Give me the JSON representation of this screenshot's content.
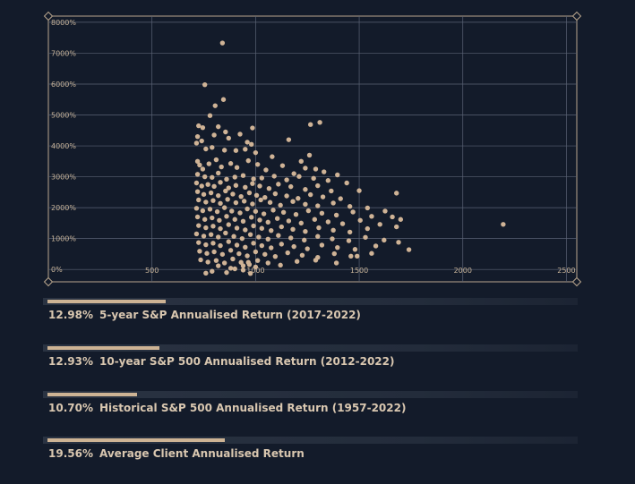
{
  "colors": {
    "background": "#131b2a",
    "grid": "#5b6375",
    "frame": "#b9a68d",
    "point": "#cfb396",
    "bar_fill": "#cdb394",
    "text": "#d9c7b0"
  },
  "chart_data": {
    "type": "scatter",
    "title": "",
    "xlabel": "",
    "ylabel": "",
    "xlim": [
      0,
      2550
    ],
    "ylim": [
      -400,
      8200
    ],
    "x_ticks": [
      500,
      1000,
      1500,
      2000,
      2500
    ],
    "y_ticks": [
      0,
      1000,
      2000,
      3000,
      4000,
      5000,
      6000,
      7000,
      8000
    ],
    "x_tick_labels": [
      "500",
      "1000",
      "1500",
      "2000",
      "2500"
    ],
    "y_tick_labels": [
      "0%",
      "1000%",
      "2000%",
      "3000%",
      "4000%",
      "5000%",
      "6000%",
      "7000%",
      "8000%"
    ],
    "grid": true,
    "series": [
      {
        "points": [
          [
            840,
            7330
          ],
          [
            755,
            5980
          ],
          [
            845,
            5500
          ],
          [
            805,
            5300
          ],
          [
            780,
            4980
          ],
          [
            1310,
            4760
          ],
          [
            1265,
            4690
          ],
          [
            725,
            4650
          ],
          [
            745,
            4590
          ],
          [
            820,
            4620
          ],
          [
            855,
            4450
          ],
          [
            985,
            4580
          ],
          [
            720,
            4300
          ],
          [
            740,
            4160
          ],
          [
            800,
            4350
          ],
          [
            870,
            4250
          ],
          [
            925,
            4380
          ],
          [
            960,
            4120
          ],
          [
            980,
            4050
          ],
          [
            1160,
            4200
          ],
          [
            715,
            4090
          ],
          [
            760,
            3900
          ],
          [
            790,
            3950
          ],
          [
            850,
            3860
          ],
          [
            905,
            3850
          ],
          [
            950,
            3890
          ],
          [
            1000,
            3780
          ],
          [
            1080,
            3650
          ],
          [
            1220,
            3500
          ],
          [
            1260,
            3700
          ],
          [
            720,
            3500
          ],
          [
            730,
            3380
          ],
          [
            745,
            3250
          ],
          [
            775,
            3420
          ],
          [
            810,
            3550
          ],
          [
            835,
            3320
          ],
          [
            880,
            3430
          ],
          [
            910,
            3300
          ],
          [
            965,
            3520
          ],
          [
            1010,
            3400
          ],
          [
            1050,
            3220
          ],
          [
            1130,
            3360
          ],
          [
            1185,
            3100
          ],
          [
            1240,
            3280
          ],
          [
            1290,
            3250
          ],
          [
            1330,
            3160
          ],
          [
            1395,
            3060
          ],
          [
            720,
            3080
          ],
          [
            755,
            3000
          ],
          [
            790,
            2980
          ],
          [
            820,
            3120
          ],
          [
            860,
            2920
          ],
          [
            900,
            2990
          ],
          [
            940,
            3040
          ],
          [
            990,
            2930
          ],
          [
            1030,
            2960
          ],
          [
            1090,
            3020
          ],
          [
            1150,
            2900
          ],
          [
            1210,
            3010
          ],
          [
            1280,
            2950
          ],
          [
            1350,
            2880
          ],
          [
            1440,
            2800
          ],
          [
            715,
            2800
          ],
          [
            740,
            2700
          ],
          [
            770,
            2750
          ],
          [
            800,
            2690
          ],
          [
            830,
            2820
          ],
          [
            870,
            2640
          ],
          [
            905,
            2720
          ],
          [
            950,
            2660
          ],
          [
            985,
            2780
          ],
          [
            1020,
            2700
          ],
          [
            1065,
            2620
          ],
          [
            1110,
            2760
          ],
          [
            1170,
            2680
          ],
          [
            1240,
            2590
          ],
          [
            1300,
            2710
          ],
          [
            1365,
            2540
          ],
          [
            1500,
            2550
          ],
          [
            1680,
            2470
          ],
          [
            720,
            2520
          ],
          [
            750,
            2430
          ],
          [
            785,
            2480
          ],
          [
            820,
            2390
          ],
          [
            855,
            2540
          ],
          [
            890,
            2440
          ],
          [
            930,
            2360
          ],
          [
            970,
            2480
          ],
          [
            1005,
            2400
          ],
          [
            1045,
            2330
          ],
          [
            1095,
            2450
          ],
          [
            1150,
            2380
          ],
          [
            1205,
            2300
          ],
          [
            1265,
            2420
          ],
          [
            1325,
            2350
          ],
          [
            1410,
            2290
          ],
          [
            725,
            2250
          ],
          [
            760,
            2180
          ],
          [
            795,
            2230
          ],
          [
            830,
            2140
          ],
          [
            865,
            2270
          ],
          [
            905,
            2160
          ],
          [
            945,
            2210
          ],
          [
            985,
            2120
          ],
          [
            1025,
            2250
          ],
          [
            1070,
            2170
          ],
          [
            1120,
            2080
          ],
          [
            1180,
            2200
          ],
          [
            1240,
            2110
          ],
          [
            1300,
            2060
          ],
          [
            1375,
            2150
          ],
          [
            1455,
            2040
          ],
          [
            1540,
            1990
          ],
          [
            1625,
            1890
          ],
          [
            715,
            1980
          ],
          [
            745,
            1900
          ],
          [
            780,
            1950
          ],
          [
            815,
            1870
          ],
          [
            850,
            2000
          ],
          [
            885,
            1890
          ],
          [
            925,
            1830
          ],
          [
            960,
            1960
          ],
          [
            1000,
            1880
          ],
          [
            1040,
            1800
          ],
          [
            1085,
            1920
          ],
          [
            1135,
            1850
          ],
          [
            1195,
            1780
          ],
          [
            1255,
            1900
          ],
          [
            1320,
            1820
          ],
          [
            1390,
            1760
          ],
          [
            1470,
            1860
          ],
          [
            1560,
            1720
          ],
          [
            1660,
            1700
          ],
          [
            720,
            1700
          ],
          [
            755,
            1620
          ],
          [
            790,
            1670
          ],
          [
            825,
            1590
          ],
          [
            860,
            1720
          ],
          [
            900,
            1620
          ],
          [
            940,
            1560
          ],
          [
            980,
            1690
          ],
          [
            1020,
            1600
          ],
          [
            1060,
            1530
          ],
          [
            1105,
            1650
          ],
          [
            1160,
            1570
          ],
          [
            1220,
            1500
          ],
          [
            1285,
            1620
          ],
          [
            1350,
            1540
          ],
          [
            1420,
            1480
          ],
          [
            1505,
            1590
          ],
          [
            1600,
            1460
          ],
          [
            1700,
            1620
          ],
          [
            725,
            1420
          ],
          [
            760,
            1350
          ],
          [
            795,
            1400
          ],
          [
            830,
            1320
          ],
          [
            870,
            1450
          ],
          [
            910,
            1340
          ],
          [
            950,
            1280
          ],
          [
            990,
            1410
          ],
          [
            1030,
            1330
          ],
          [
            1075,
            1260
          ],
          [
            1125,
            1380
          ],
          [
            1180,
            1300
          ],
          [
            1240,
            1230
          ],
          [
            1305,
            1350
          ],
          [
            1375,
            1270
          ],
          [
            1455,
            1210
          ],
          [
            1540,
            1320
          ],
          [
            1680,
            1380
          ],
          [
            2195,
            1460
          ],
          [
            715,
            1150
          ],
          [
            750,
            1080
          ],
          [
            785,
            1130
          ],
          [
            820,
            1050
          ],
          [
            855,
            1180
          ],
          [
            895,
            1070
          ],
          [
            935,
            1000
          ],
          [
            975,
            1130
          ],
          [
            1015,
            1050
          ],
          [
            1060,
            980
          ],
          [
            1110,
            1100
          ],
          [
            1170,
            1020
          ],
          [
            1235,
            950
          ],
          [
            1300,
            1070
          ],
          [
            1370,
            990
          ],
          [
            1450,
            930
          ],
          [
            1530,
            1040
          ],
          [
            1620,
            950
          ],
          [
            725,
            870
          ],
          [
            760,
            800
          ],
          [
            795,
            850
          ],
          [
            830,
            770
          ],
          [
            870,
            900
          ],
          [
            910,
            790
          ],
          [
            950,
            720
          ],
          [
            990,
            850
          ],
          [
            1030,
            770
          ],
          [
            1075,
            700
          ],
          [
            1125,
            820
          ],
          [
            1185,
            740
          ],
          [
            1250,
            670
          ],
          [
            1320,
            790
          ],
          [
            1395,
            710
          ],
          [
            1480,
            650
          ],
          [
            1580,
            760
          ],
          [
            1690,
            880
          ],
          [
            730,
            590
          ],
          [
            765,
            520
          ],
          [
            800,
            570
          ],
          [
            840,
            490
          ],
          [
            880,
            620
          ],
          [
            920,
            510
          ],
          [
            960,
            440
          ],
          [
            1000,
            570
          ],
          [
            1045,
            490
          ],
          [
            1095,
            420
          ],
          [
            1155,
            540
          ],
          [
            1225,
            460
          ],
          [
            1300,
            390
          ],
          [
            1380,
            510
          ],
          [
            1460,
            430
          ],
          [
            1560,
            520
          ],
          [
            1740,
            640
          ],
          [
            735,
            310
          ],
          [
            770,
            240
          ],
          [
            810,
            290
          ],
          [
            850,
            210
          ],
          [
            890,
            340
          ],
          [
            930,
            230
          ],
          [
            970,
            160
          ],
          [
            1010,
            290
          ],
          [
            1060,
            210
          ],
          [
            1120,
            140
          ],
          [
            1200,
            260
          ],
          [
            1290,
            300
          ],
          [
            1390,
            210
          ],
          [
            1490,
            430
          ],
          [
            760,
            -120
          ],
          [
            790,
            -60
          ],
          [
            860,
            -100
          ],
          [
            900,
            20
          ],
          [
            940,
            -20
          ],
          [
            975,
            -130
          ],
          [
            1000,
            80
          ],
          [
            940,
            120
          ],
          [
            880,
            40
          ],
          [
            820,
            120
          ],
          [
            965,
            230
          ]
        ]
      }
    ]
  },
  "stats": [
    {
      "value": "12.98%",
      "label": "5-year S&P Annualised Return (2017-2022)",
      "bar_fraction": 0.2245
    },
    {
      "value": "12.93%",
      "label": "10-year S&P 500 Annualised Return (2012-2022)",
      "bar_fraction": 0.2127
    },
    {
      "value": "10.70%",
      "label": "Historical S&P 500 Annualised Return (1957-2022)",
      "bar_fraction": 0.1708
    },
    {
      "value": "19.56%",
      "label": "Average Client Annualised Return",
      "bar_fraction": 0.3367
    }
  ]
}
